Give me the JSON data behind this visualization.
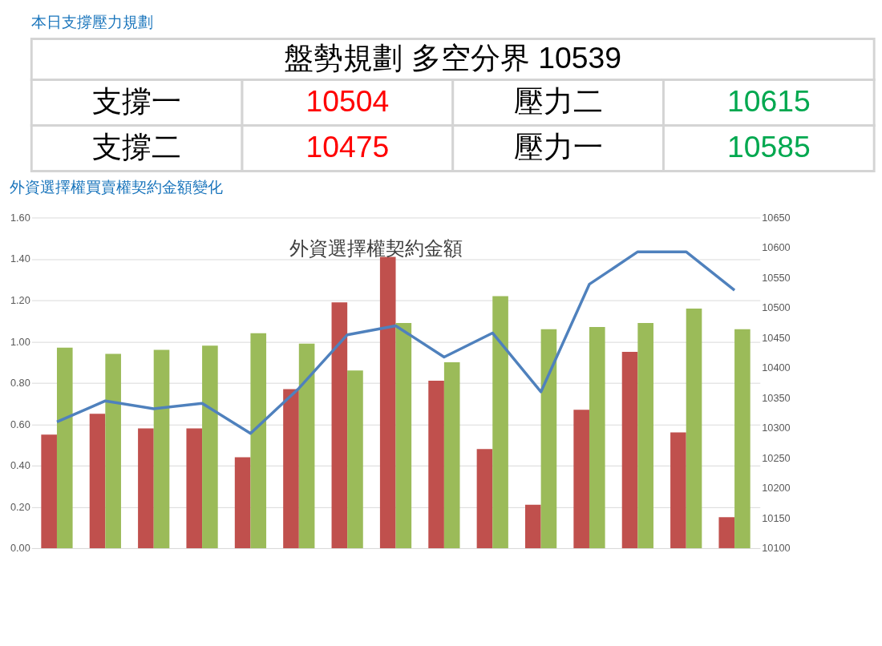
{
  "chart_data": [
    {
      "type": "other",
      "title": "本日支撐壓力規劃",
      "subtitle": "盤勢規劃 多空分界 10539",
      "annotations": [
        "支撐一",
        "10504",
        "壓力二",
        "10615",
        "支撐二",
        "10475",
        "壓力一",
        "10585"
      ],
      "colors": [
        "#000000",
        "#ff0000",
        "#000000",
        "#00a84f",
        "#000000",
        "#ff0000",
        "#000000",
        "#00a84f"
      ]
    },
    {
      "type": "bar",
      "title": "外資選擇權買賣權契約金額變化",
      "subtitle": "外資選擇權契約金額",
      "categories": [
        null,
        null,
        null,
        null,
        null,
        null,
        null,
        null,
        null,
        null,
        null,
        null,
        null,
        null,
        null
      ],
      "series": [
        {
          "type": "bar",
          "color": "#c0504d",
          "values": [
            0.55,
            0.65,
            0.58,
            0.58,
            0.44,
            0.77,
            1.19,
            1.41,
            0.81,
            0.48,
            0.21,
            0.67,
            0.95,
            0.56,
            0.15
          ]
        },
        {
          "type": "bar",
          "color": "#9bbb59",
          "values": [
            0.97,
            0.94,
            0.96,
            0.98,
            1.04,
            0.99,
            0.86,
            1.09,
            0.9,
            1.22,
            1.06,
            1.07,
            1.09,
            1.16,
            1.06
          ]
        },
        {
          "type": "line",
          "axis": "y2",
          "color": "#4f81bd",
          "values": [
            10310,
            10345,
            10332,
            10341,
            10291,
            10366,
            10455,
            10470,
            10418,
            10458,
            10360,
            10539,
            10593,
            10593,
            10529
          ]
        }
      ],
      "ylim": [
        0,
        1.6
      ],
      "yticks": [
        {
          "value": 0,
          "label": "0.00"
        },
        {
          "value": 0.2,
          "label": "0.20"
        },
        {
          "value": 0.4,
          "label": "0.40"
        },
        {
          "value": 0.6,
          "label": "0.60"
        },
        {
          "value": 0.8,
          "label": "0.80"
        },
        {
          "value": 1.0,
          "label": "1.00"
        },
        {
          "value": 1.2,
          "label": "1.20"
        },
        {
          "value": 1.4,
          "label": "1.40"
        },
        {
          "value": 1.6,
          "label": "1.60"
        }
      ],
      "y2lim": [
        10100,
        10650
      ],
      "y2ticks": [
        10100,
        10150,
        10200,
        10250,
        10300,
        10350,
        10400,
        10450,
        10500,
        10550,
        10600,
        10650
      ],
      "grid": "y",
      "marker": "none",
      "line_style": "solid"
    }
  ]
}
